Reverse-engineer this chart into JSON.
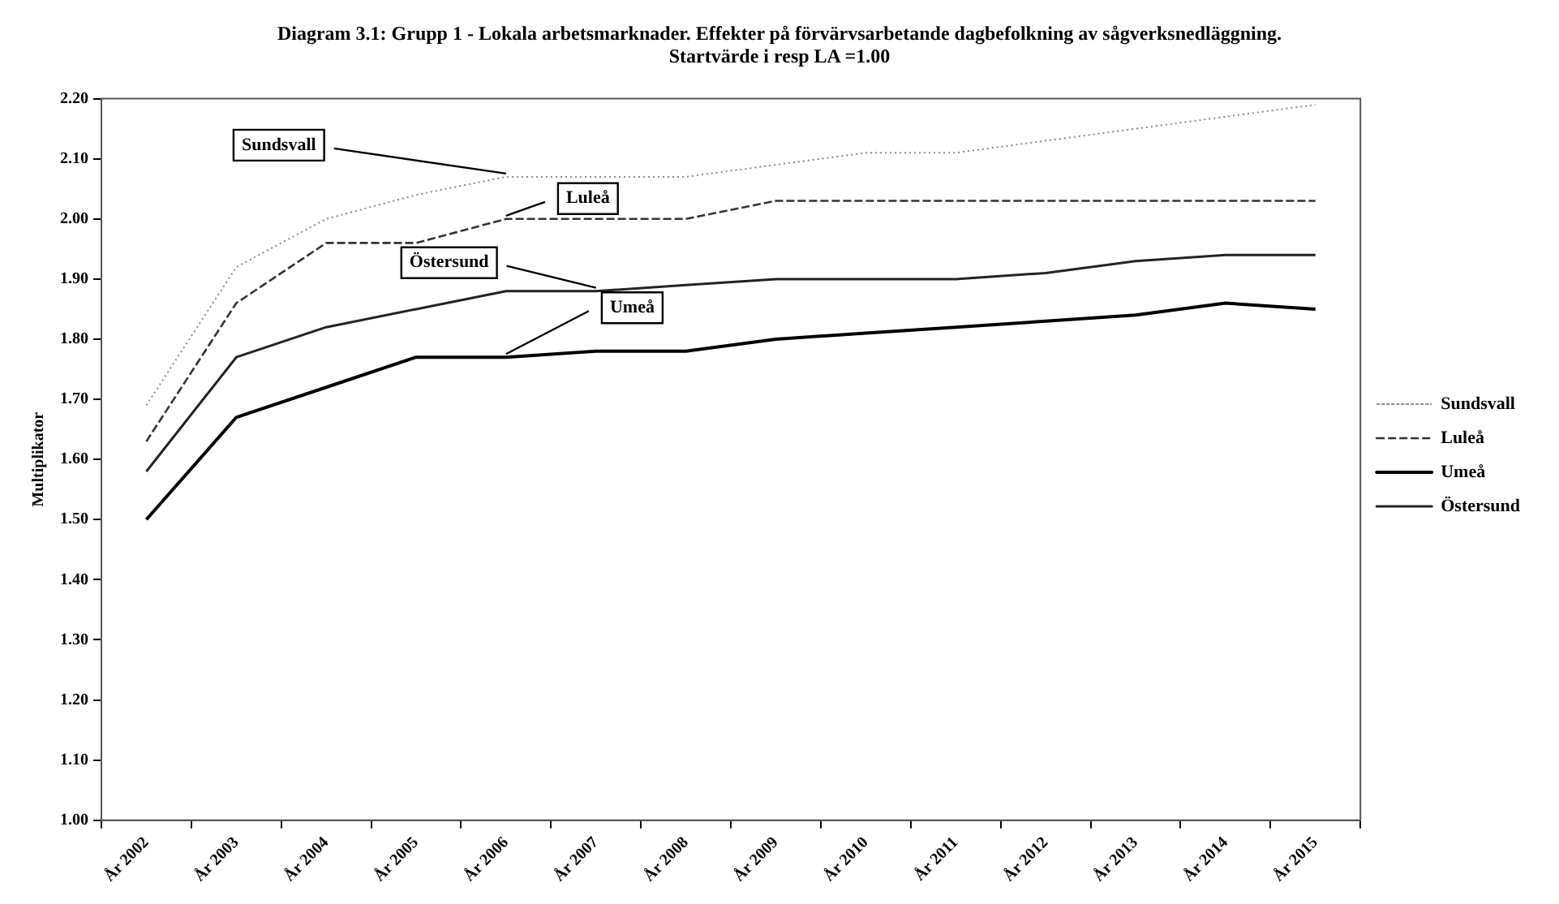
{
  "chart_data": {
    "type": "line",
    "title": "Diagram 3.1: Grupp 1 - Lokala arbetsmarknader. Effekter på förvärvsarbetande dagbefolkning av sågverksnedläggning.",
    "subtitle": "Startvärde i resp LA =1.00",
    "ylabel": "Multiplikator",
    "categories": [
      "År 2002",
      "År 2003",
      "År 2004",
      "År 2005",
      "År 2006",
      "År 2007",
      "År 2008",
      "År 2009",
      "År 2010",
      "År 2011",
      "År 2012",
      "År 2013",
      "År 2014",
      "År 2015"
    ],
    "series": [
      {
        "name": "Sundsvall",
        "color": "#8a8a8a",
        "line_style": "dotted",
        "values": [
          1.69,
          1.92,
          2.0,
          2.04,
          2.07,
          2.07,
          2.07,
          2.09,
          2.11,
          2.11,
          2.13,
          2.15,
          2.17,
          2.19
        ]
      },
      {
        "name": "Luleå",
        "color": "#333333",
        "line_style": "dashed",
        "values": [
          1.63,
          1.86,
          1.96,
          1.96,
          2.0,
          2.0,
          2.0,
          2.03,
          2.03,
          2.03,
          2.03,
          2.03,
          2.03,
          2.03
        ]
      },
      {
        "name": "Umeå",
        "color": "#000000",
        "line_style": "solid",
        "values": [
          1.5,
          1.67,
          1.72,
          1.77,
          1.77,
          1.78,
          1.78,
          1.8,
          1.81,
          1.82,
          1.83,
          1.84,
          1.86,
          1.85
        ]
      },
      {
        "name": "Östersund",
        "color": "#222222",
        "line_style": "solid",
        "values": [
          1.58,
          1.77,
          1.82,
          1.85,
          1.88,
          1.88,
          1.89,
          1.9,
          1.9,
          1.9,
          1.91,
          1.93,
          1.94,
          1.94
        ]
      }
    ],
    "ylim": [
      1.0,
      2.2
    ],
    "yticks": [
      {
        "value": 1.0,
        "label": "1.00"
      },
      {
        "value": 1.1,
        "label": "1.10"
      },
      {
        "value": 1.2,
        "label": "1.20"
      },
      {
        "value": 1.3,
        "label": "1.30"
      },
      {
        "value": 1.4,
        "label": "1.40"
      },
      {
        "value": 1.5,
        "label": "1.50"
      },
      {
        "value": 1.6,
        "label": "1.60"
      },
      {
        "value": 1.7,
        "label": "1.70"
      },
      {
        "value": 1.8,
        "label": "1.80"
      },
      {
        "value": 1.9,
        "label": "1.90"
      },
      {
        "value": 2.0,
        "label": "2.00"
      },
      {
        "value": 2.1,
        "label": "2.10"
      },
      {
        "value": 2.2,
        "label": "2.20"
      }
    ],
    "grid": false,
    "legend": "right",
    "marker": "none"
  }
}
